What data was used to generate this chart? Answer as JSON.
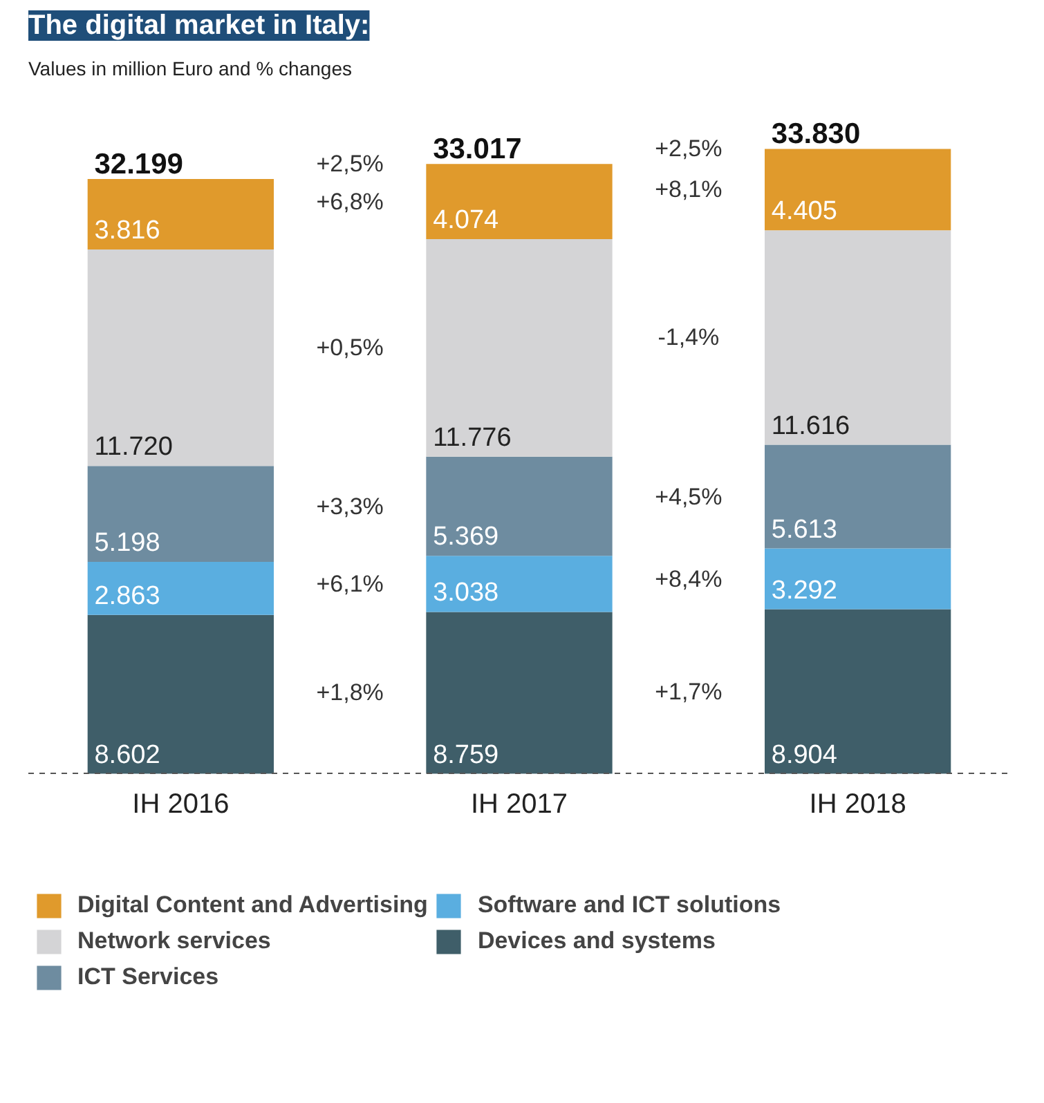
{
  "chart_data": {
    "type": "bar",
    "title": "The digital market in Italy:",
    "subtitle": "Values in million Euro and % changes",
    "categories": [
      "IH 2016",
      "IH 2017",
      "IH 2018"
    ],
    "stacked": true,
    "grid": false,
    "legend": "bottom",
    "tick_labels": "x",
    "series": [
      {
        "name": "Devices and systems",
        "color": "#3f5e69",
        "values": [
          8602,
          8759,
          8904
        ],
        "value_labels": [
          "8.602",
          "8.759",
          "8.904"
        ]
      },
      {
        "name": "Software and ICT solutions",
        "color": "#5aaee0",
        "values": [
          2863,
          3038,
          3292
        ],
        "value_labels": [
          "2.863",
          "3.038",
          "3.292"
        ]
      },
      {
        "name": "ICT Services",
        "color": "#6e8ca0",
        "values": [
          5198,
          5369,
          5613
        ],
        "value_labels": [
          "5.198",
          "5.369",
          "5.613"
        ]
      },
      {
        "name": "Network services",
        "color": "#d4d4d6",
        "values": [
          11720,
          11776,
          11616
        ],
        "value_labels": [
          "11.720",
          "11.776",
          "11.616"
        ]
      },
      {
        "name": "Digital Content and Advertising",
        "color": "#e09a2c",
        "values": [
          3816,
          4074,
          4405
        ],
        "value_labels": [
          "3.816",
          "4.074",
          "4.405"
        ]
      }
    ],
    "totals": [
      "32.199",
      "33.017",
      "33.830"
    ],
    "annotations": [
      "+2,5%",
      "+6,8%",
      "+0,5%",
      "+3,3%",
      "+6,1%",
      "+1,8%",
      "+2,5%",
      "+8,1%",
      "-1,4%",
      "+4,5%",
      "+8,4%",
      "+1,7%"
    ]
  }
}
